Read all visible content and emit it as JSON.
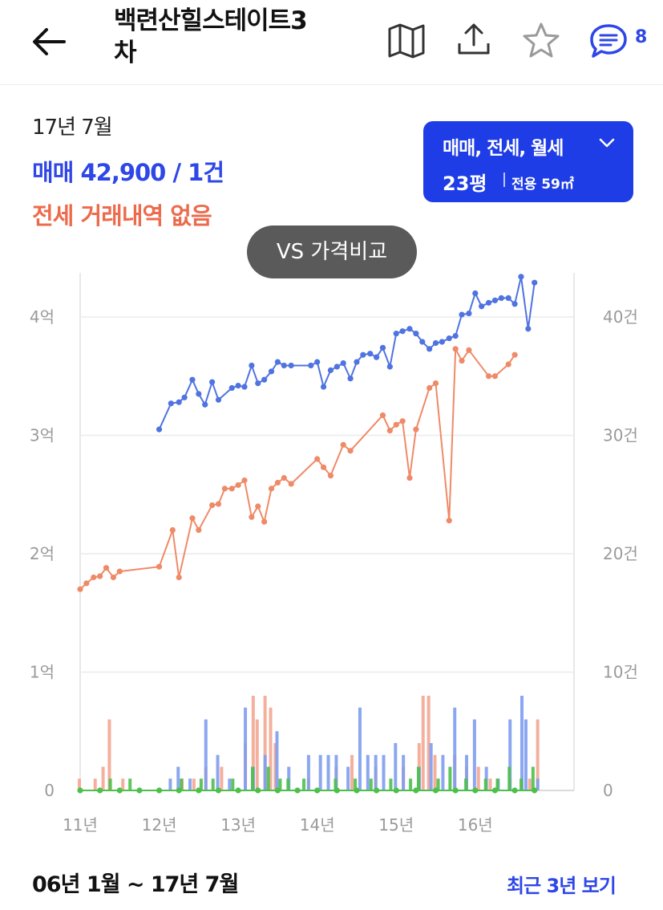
{
  "header": {
    "title_line1": "백련산힐스테이트3",
    "title_line2": "차",
    "comment_count": "8",
    "icons": [
      "back-arrow-icon",
      "map-icon",
      "share-icon",
      "star-icon",
      "comment-icon"
    ]
  },
  "summary": {
    "date": "17년 7월",
    "sale": "매매 42,900 / 1건",
    "jeonse": "전세 거래내역 없음"
  },
  "filter": {
    "types": "매매, 전세, 월세",
    "size": "23평",
    "area": "전용 59㎡"
  },
  "compare_button": "VS 가격비교",
  "footer": {
    "range": "06년 1월 ~ 17년 7월",
    "recent_link": "최근 3년 보기"
  },
  "colors": {
    "sale": "#4f73e0",
    "jeonse": "#ef8a68",
    "monthly": "#4cc04a",
    "accent": "#2e47e6",
    "vol_sale": "#7f9df0",
    "vol_jeonse": "#f3a692"
  },
  "chart_data": {
    "type": "line",
    "x_ticks": [
      {
        "t": 2011,
        "label": "11년"
      },
      {
        "t": 2012,
        "label": "12년"
      },
      {
        "t": 2013,
        "label": "13년"
      },
      {
        "t": 2014,
        "label": "14년"
      },
      {
        "t": 2015,
        "label": "15년"
      },
      {
        "t": 2016,
        "label": "16년"
      }
    ],
    "xlim": [
      2011.0,
      2017.25
    ],
    "y_left": {
      "ticks": [
        {
          "v": 0,
          "label": "0"
        },
        {
          "v": 1,
          "label": "1억"
        },
        {
          "v": 2,
          "label": "2억"
        },
        {
          "v": 3,
          "label": "3억"
        },
        {
          "v": 4,
          "label": "4억"
        }
      ],
      "lim": [
        0,
        4.4
      ]
    },
    "y_right": {
      "ticks": [
        {
          "v": 0,
          "label": "0"
        },
        {
          "v": 10,
          "label": "10건"
        },
        {
          "v": 20,
          "label": "20건"
        },
        {
          "v": 30,
          "label": "30건"
        },
        {
          "v": 40,
          "label": "40건"
        }
      ],
      "lim": [
        0,
        44
      ]
    },
    "series": [
      {
        "name": "매매",
        "points": [
          [
            2012.0,
            3.05
          ],
          [
            2012.15,
            3.27
          ],
          [
            2012.25,
            3.28
          ],
          [
            2012.32,
            3.32
          ],
          [
            2012.42,
            3.47
          ],
          [
            2012.5,
            3.35
          ],
          [
            2012.58,
            3.26
          ],
          [
            2012.67,
            3.45
          ],
          [
            2012.75,
            3.3
          ],
          [
            2012.92,
            3.4
          ],
          [
            2013.0,
            3.42
          ],
          [
            2013.08,
            3.41
          ],
          [
            2013.17,
            3.59
          ],
          [
            2013.25,
            3.44
          ],
          [
            2013.33,
            3.47
          ],
          [
            2013.42,
            3.54
          ],
          [
            2013.5,
            3.62
          ],
          [
            2013.58,
            3.59
          ],
          [
            2013.67,
            3.59
          ],
          [
            2013.92,
            3.59
          ],
          [
            2014.0,
            3.62
          ],
          [
            2014.08,
            3.41
          ],
          [
            2014.17,
            3.55
          ],
          [
            2014.25,
            3.58
          ],
          [
            2014.33,
            3.61
          ],
          [
            2014.42,
            3.48
          ],
          [
            2014.5,
            3.62
          ],
          [
            2014.58,
            3.68
          ],
          [
            2014.67,
            3.69
          ],
          [
            2014.75,
            3.66
          ],
          [
            2014.83,
            3.74
          ],
          [
            2014.92,
            3.58
          ],
          [
            2015.0,
            3.86
          ],
          [
            2015.08,
            3.88
          ],
          [
            2015.17,
            3.9
          ],
          [
            2015.25,
            3.86
          ],
          [
            2015.33,
            3.79
          ],
          [
            2015.42,
            3.73
          ],
          [
            2015.5,
            3.78
          ],
          [
            2015.58,
            3.79
          ],
          [
            2015.67,
            3.82
          ],
          [
            2015.75,
            3.84
          ],
          [
            2015.83,
            4.02
          ],
          [
            2015.92,
            4.03
          ],
          [
            2016.0,
            4.2
          ],
          [
            2016.08,
            4.09
          ],
          [
            2016.17,
            4.12
          ],
          [
            2016.25,
            4.14
          ],
          [
            2016.33,
            4.16
          ],
          [
            2016.42,
            4.16
          ],
          [
            2016.5,
            4.11
          ],
          [
            2016.58,
            4.34
          ],
          [
            2016.67,
            3.9
          ],
          [
            2016.75,
            4.29
          ]
        ]
      },
      {
        "name": "전세",
        "points": [
          [
            2011.0,
            1.7
          ],
          [
            2011.08,
            1.75
          ],
          [
            2011.17,
            1.8
          ],
          [
            2011.25,
            1.81
          ],
          [
            2011.33,
            1.88
          ],
          [
            2011.42,
            1.8
          ],
          [
            2011.5,
            1.85
          ],
          [
            2012.0,
            1.89
          ],
          [
            2012.17,
            2.2
          ],
          [
            2012.25,
            1.8
          ],
          [
            2012.42,
            2.3
          ],
          [
            2012.5,
            2.2
          ],
          [
            2012.67,
            2.41
          ],
          [
            2012.75,
            2.42
          ],
          [
            2012.83,
            2.55
          ],
          [
            2012.92,
            2.55
          ],
          [
            2013.0,
            2.58
          ],
          [
            2013.08,
            2.62
          ],
          [
            2013.17,
            2.31
          ],
          [
            2013.25,
            2.4
          ],
          [
            2013.33,
            2.27
          ],
          [
            2013.42,
            2.55
          ],
          [
            2013.5,
            2.6
          ],
          [
            2013.58,
            2.64
          ],
          [
            2013.67,
            2.59
          ],
          [
            2014.0,
            2.8
          ],
          [
            2014.08,
            2.73
          ],
          [
            2014.17,
            2.66
          ],
          [
            2014.33,
            2.92
          ],
          [
            2014.42,
            2.87
          ],
          [
            2014.83,
            3.17
          ],
          [
            2014.92,
            3.04
          ],
          [
            2015.0,
            3.09
          ],
          [
            2015.08,
            3.12
          ],
          [
            2015.17,
            2.64
          ],
          [
            2015.25,
            3.05
          ],
          [
            2015.42,
            3.4
          ],
          [
            2015.5,
            3.44
          ],
          [
            2015.67,
            2.28
          ],
          [
            2015.75,
            3.73
          ],
          [
            2015.83,
            3.63
          ],
          [
            2015.92,
            3.72
          ],
          [
            2016.17,
            3.5
          ],
          [
            2016.25,
            3.5
          ],
          [
            2016.42,
            3.6
          ],
          [
            2016.5,
            3.68
          ]
        ]
      },
      {
        "name": "월세",
        "points": [
          [
            2011.0,
            0
          ],
          [
            2011.25,
            0
          ],
          [
            2011.5,
            0
          ],
          [
            2011.75,
            0
          ],
          [
            2012.0,
            0
          ],
          [
            2012.25,
            0
          ],
          [
            2012.5,
            0
          ],
          [
            2012.75,
            0
          ],
          [
            2013.0,
            0
          ],
          [
            2013.25,
            0
          ],
          [
            2013.5,
            0
          ],
          [
            2013.75,
            0
          ],
          [
            2014.0,
            0
          ],
          [
            2014.25,
            0
          ],
          [
            2014.5,
            0
          ],
          [
            2014.75,
            0
          ],
          [
            2015.0,
            0
          ],
          [
            2015.25,
            0
          ],
          [
            2015.5,
            0
          ],
          [
            2015.75,
            0
          ],
          [
            2016.0,
            0
          ],
          [
            2016.25,
            0
          ],
          [
            2016.5,
            0
          ],
          [
            2016.75,
            0
          ]
        ]
      }
    ],
    "volume": {
      "unit": "건",
      "sale": [
        [
          2012.1,
          1
        ],
        [
          2012.2,
          2
        ],
        [
          2012.35,
          1
        ],
        [
          2012.55,
          6
        ],
        [
          2012.7,
          3
        ],
        [
          2012.85,
          1
        ],
        [
          2013.05,
          7
        ],
        [
          2013.15,
          2
        ],
        [
          2013.3,
          3
        ],
        [
          2013.45,
          5
        ],
        [
          2013.6,
          2
        ],
        [
          2013.85,
          3
        ],
        [
          2014.0,
          3
        ],
        [
          2014.1,
          3
        ],
        [
          2014.2,
          3
        ],
        [
          2014.35,
          2
        ],
        [
          2014.5,
          7
        ],
        [
          2014.6,
          3
        ],
        [
          2014.7,
          3
        ],
        [
          2014.8,
          3
        ],
        [
          2014.95,
          4
        ],
        [
          2015.05,
          3
        ],
        [
          2015.25,
          2
        ],
        [
          2015.4,
          4
        ],
        [
          2015.55,
          3
        ],
        [
          2015.7,
          7
        ],
        [
          2015.85,
          3
        ],
        [
          2015.95,
          6
        ],
        [
          2016.1,
          2
        ],
        [
          2016.25,
          1
        ],
        [
          2016.4,
          6
        ],
        [
          2016.55,
          8
        ],
        [
          2016.6,
          6
        ],
        [
          2016.75,
          1
        ]
      ],
      "jeonse": [
        [
          2011.0,
          1
        ],
        [
          2011.2,
          1
        ],
        [
          2011.3,
          2
        ],
        [
          2011.38,
          6
        ],
        [
          2011.55,
          1
        ],
        [
          2012.3,
          1
        ],
        [
          2012.45,
          1
        ],
        [
          2012.6,
          2
        ],
        [
          2012.8,
          2
        ],
        [
          2013.1,
          4
        ],
        [
          2013.2,
          8
        ],
        [
          2013.25,
          6
        ],
        [
          2013.35,
          8
        ],
        [
          2013.42,
          7
        ],
        [
          2013.48,
          4
        ],
        [
          2013.9,
          1
        ],
        [
          2014.25,
          2
        ],
        [
          2014.45,
          3
        ],
        [
          2014.75,
          2
        ],
        [
          2015.1,
          2
        ],
        [
          2015.3,
          4
        ],
        [
          2015.35,
          8
        ],
        [
          2015.42,
          8
        ],
        [
          2015.5,
          3
        ],
        [
          2015.75,
          3
        ],
        [
          2015.9,
          2
        ],
        [
          2016.05,
          2
        ],
        [
          2016.2,
          1
        ],
        [
          2016.45,
          1
        ],
        [
          2016.7,
          1
        ],
        [
          2016.8,
          6
        ]
      ],
      "monthly": [
        [
          2011.3,
          1
        ],
        [
          2011.55,
          1
        ],
        [
          2012.2,
          1
        ],
        [
          2012.45,
          1
        ],
        [
          2012.6,
          1
        ],
        [
          2012.85,
          1
        ],
        [
          2013.1,
          2
        ],
        [
          2013.3,
          2
        ],
        [
          2013.45,
          1
        ],
        [
          2013.55,
          1
        ],
        [
          2013.75,
          1
        ],
        [
          2014.15,
          1
        ],
        [
          2014.4,
          1
        ],
        [
          2014.6,
          1
        ],
        [
          2014.85,
          1
        ],
        [
          2015.1,
          1
        ],
        [
          2015.2,
          2
        ],
        [
          2015.45,
          1
        ],
        [
          2015.6,
          2
        ],
        [
          2015.8,
          1
        ],
        [
          2016.05,
          1
        ],
        [
          2016.2,
          1
        ],
        [
          2016.35,
          2
        ],
        [
          2016.5,
          1
        ],
        [
          2016.65,
          2
        ]
      ]
    }
  }
}
